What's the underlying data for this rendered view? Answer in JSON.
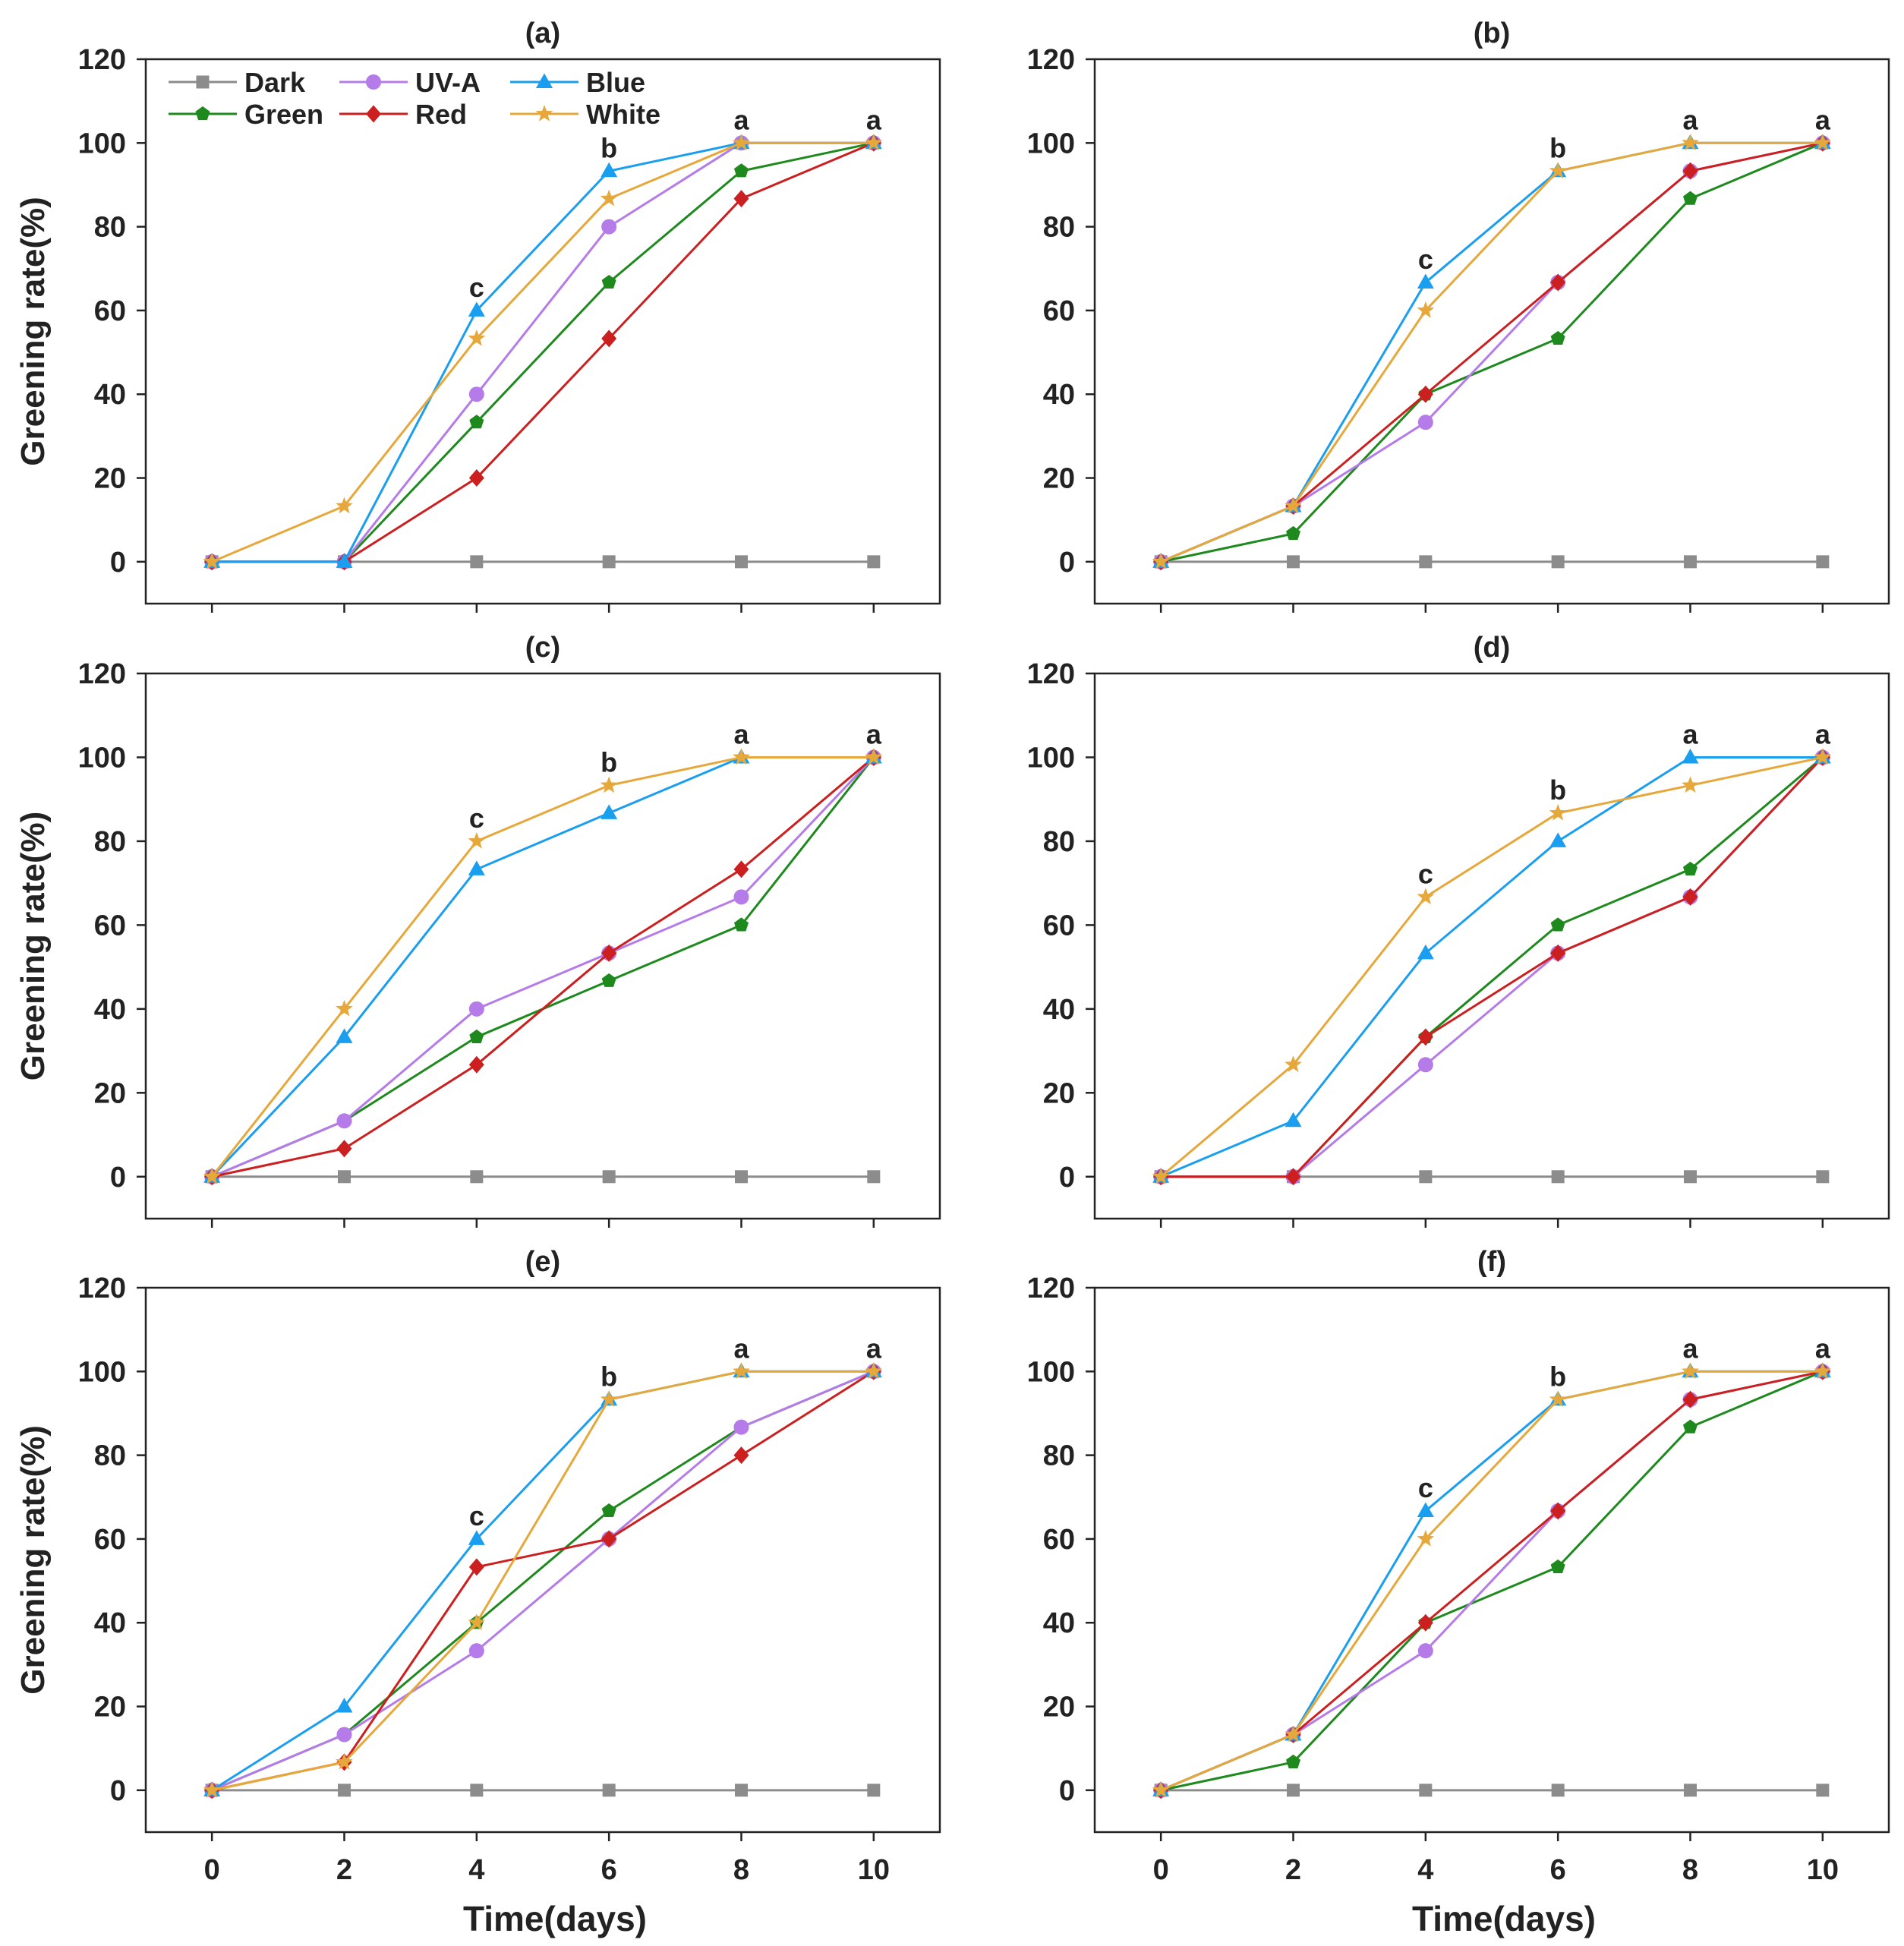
{
  "colors": {
    "Dark": "#8c8c8c",
    "Green": "#1e8a1e",
    "UV-A": "#b57be8",
    "Red": "#cc1f1f",
    "Blue": "#1a9ef0",
    "White": "#e6a83a",
    "axis": "#222222",
    "letters": "#222222"
  },
  "markers": {
    "Dark": "square",
    "Green": "pentagon",
    "UV-A": "circle",
    "Red": "diamond",
    "Blue": "triangle",
    "White": "star"
  },
  "legend": {
    "location": "top-left of panel (a)",
    "entries": [
      "Dark",
      "UV-A",
      "Blue",
      "Green",
      "Red",
      "White"
    ]
  },
  "chart_data": [
    {
      "type": "line",
      "title": "(a)",
      "xlabel": "",
      "ylabel": "Greening rate(%)",
      "x": [
        0,
        2,
        4,
        6,
        8,
        10
      ],
      "xticks": [
        "",
        "",
        "",
        "",
        "",
        ""
      ],
      "yticks": [
        "0",
        "20",
        "40",
        "60",
        "80",
        "100",
        "120"
      ],
      "ylim": [
        -10,
        120
      ],
      "grid": false,
      "legend": true,
      "series": [
        {
          "name": "Dark",
          "values": [
            0,
            0,
            0,
            0,
            0,
            0
          ]
        },
        {
          "name": "Green",
          "values": [
            0,
            0,
            33.3,
            66.7,
            93.3,
            100
          ]
        },
        {
          "name": "UV-A",
          "values": [
            0,
            0,
            40,
            80,
            100,
            100
          ]
        },
        {
          "name": "Red",
          "values": [
            0,
            0,
            20,
            53.3,
            86.7,
            100
          ]
        },
        {
          "name": "Blue",
          "values": [
            0,
            0,
            60,
            93.3,
            100,
            100
          ]
        },
        {
          "name": "White",
          "values": [
            0,
            13.3,
            53.3,
            86.7,
            100,
            100
          ]
        }
      ],
      "annotations": [
        {
          "x": 4,
          "y": 60,
          "text": "c"
        },
        {
          "x": 6,
          "y": 93.3,
          "text": "b"
        },
        {
          "x": 8,
          "y": 100,
          "text": "a"
        },
        {
          "x": 10,
          "y": 100,
          "text": "a"
        }
      ]
    },
    {
      "type": "line",
      "title": "(b)",
      "xlabel": "",
      "ylabel": "",
      "x": [
        0,
        2,
        4,
        6,
        8,
        10
      ],
      "xticks": [
        "",
        "",
        "",
        "",
        "",
        ""
      ],
      "yticks": [
        "0",
        "20",
        "40",
        "60",
        "80",
        "100",
        "120"
      ],
      "ylim": [
        -10,
        120
      ],
      "grid": false,
      "legend": false,
      "series": [
        {
          "name": "Dark",
          "values": [
            0,
            0,
            0,
            0,
            0,
            0
          ]
        },
        {
          "name": "Green",
          "values": [
            0,
            6.7,
            40,
            53.3,
            86.7,
            100
          ]
        },
        {
          "name": "UV-A",
          "values": [
            0,
            13.3,
            33.3,
            66.7,
            93.3,
            100
          ]
        },
        {
          "name": "Red",
          "values": [
            0,
            13.3,
            40,
            66.7,
            93.3,
            100
          ]
        },
        {
          "name": "Blue",
          "values": [
            0,
            13.3,
            66.7,
            93.3,
            100,
            100
          ]
        },
        {
          "name": "White",
          "values": [
            0,
            13.3,
            60,
            93.3,
            100,
            100
          ]
        }
      ],
      "annotations": [
        {
          "x": 4,
          "y": 66.7,
          "text": "c"
        },
        {
          "x": 6,
          "y": 93.3,
          "text": "b"
        },
        {
          "x": 8,
          "y": 100,
          "text": "a"
        },
        {
          "x": 10,
          "y": 100,
          "text": "a"
        }
      ]
    },
    {
      "type": "line",
      "title": "(c)",
      "xlabel": "",
      "ylabel": "Greening rate(%)",
      "x": [
        0,
        2,
        4,
        6,
        8,
        10
      ],
      "xticks": [
        "",
        "",
        "",
        "",
        "",
        ""
      ],
      "yticks": [
        "0",
        "20",
        "40",
        "60",
        "80",
        "100",
        "120"
      ],
      "ylim": [
        -10,
        120
      ],
      "grid": false,
      "legend": false,
      "series": [
        {
          "name": "Dark",
          "values": [
            0,
            0,
            0,
            0,
            0,
            0
          ]
        },
        {
          "name": "Green",
          "values": [
            0,
            13.3,
            33.3,
            46.7,
            60,
            100
          ]
        },
        {
          "name": "UV-A",
          "values": [
            0,
            13.3,
            40,
            53.3,
            66.7,
            100
          ]
        },
        {
          "name": "Red",
          "values": [
            0,
            6.7,
            26.7,
            53.3,
            73.3,
            100
          ]
        },
        {
          "name": "Blue",
          "values": [
            0,
            33.3,
            73.3,
            86.7,
            100,
            100
          ]
        },
        {
          "name": "White",
          "values": [
            0,
            40,
            80,
            93.3,
            100,
            100
          ]
        }
      ],
      "annotations": [
        {
          "x": 4,
          "y": 80,
          "text": "c"
        },
        {
          "x": 6,
          "y": 93.3,
          "text": "b"
        },
        {
          "x": 8,
          "y": 100,
          "text": "a"
        },
        {
          "x": 10,
          "y": 100,
          "text": "a"
        }
      ]
    },
    {
      "type": "line",
      "title": "(d)",
      "xlabel": "",
      "ylabel": "",
      "x": [
        0,
        2,
        4,
        6,
        8,
        10
      ],
      "xticks": [
        "",
        "",
        "",
        "",
        "",
        ""
      ],
      "yticks": [
        "0",
        "20",
        "40",
        "60",
        "80",
        "100",
        "120"
      ],
      "ylim": [
        -10,
        120
      ],
      "grid": false,
      "legend": false,
      "series": [
        {
          "name": "Dark",
          "values": [
            0,
            0,
            0,
            0,
            0,
            0
          ]
        },
        {
          "name": "Green",
          "values": [
            0,
            0,
            33.3,
            60,
            73.3,
            100
          ]
        },
        {
          "name": "UV-A",
          "values": [
            0,
            0,
            26.7,
            53.3,
            66.7,
            100
          ]
        },
        {
          "name": "Red",
          "values": [
            0,
            0,
            33.3,
            53.3,
            66.7,
            100
          ]
        },
        {
          "name": "Blue",
          "values": [
            0,
            13.3,
            53.3,
            80,
            100,
            100
          ]
        },
        {
          "name": "White",
          "values": [
            0,
            26.7,
            66.7,
            86.7,
            93.3,
            100
          ]
        }
      ],
      "annotations": [
        {
          "x": 4,
          "y": 66.7,
          "text": "c"
        },
        {
          "x": 6,
          "y": 86.7,
          "text": "b"
        },
        {
          "x": 8,
          "y": 100,
          "text": "a"
        },
        {
          "x": 10,
          "y": 100,
          "text": "a"
        }
      ]
    },
    {
      "type": "line",
      "title": "(e)",
      "xlabel": "Time(days)",
      "ylabel": "Greening rate(%)",
      "x": [
        0,
        2,
        4,
        6,
        8,
        10
      ],
      "xticks": [
        "0",
        "2",
        "4",
        "6",
        "8",
        "10"
      ],
      "yticks": [
        "0",
        "20",
        "40",
        "60",
        "80",
        "100",
        "120"
      ],
      "ylim": [
        -10,
        120
      ],
      "grid": false,
      "legend": false,
      "series": [
        {
          "name": "Dark",
          "values": [
            0,
            0,
            0,
            0,
            0,
            0
          ]
        },
        {
          "name": "Green",
          "values": [
            0,
            13.3,
            40,
            66.7,
            86.7,
            100
          ]
        },
        {
          "name": "UV-A",
          "values": [
            0,
            13.3,
            33.3,
            60,
            86.7,
            100
          ]
        },
        {
          "name": "Red",
          "values": [
            0,
            6.7,
            53.3,
            60,
            80,
            100
          ]
        },
        {
          "name": "Blue",
          "values": [
            0,
            20,
            60,
            93.3,
            100,
            100
          ]
        },
        {
          "name": "White",
          "values": [
            0,
            6.7,
            40,
            93.3,
            100,
            100
          ]
        }
      ],
      "annotations": [
        {
          "x": 4,
          "y": 60,
          "text": "c"
        },
        {
          "x": 6,
          "y": 93.3,
          "text": "b"
        },
        {
          "x": 8,
          "y": 100,
          "text": "a"
        },
        {
          "x": 10,
          "y": 100,
          "text": "a"
        }
      ]
    },
    {
      "type": "line",
      "title": "(f)",
      "xlabel": "Time(days)",
      "ylabel": "",
      "x": [
        0,
        2,
        4,
        6,
        8,
        10
      ],
      "xticks": [
        "0",
        "2",
        "4",
        "6",
        "8",
        "10"
      ],
      "yticks": [
        "0",
        "20",
        "40",
        "60",
        "80",
        "100",
        "120"
      ],
      "ylim": [
        -10,
        120
      ],
      "grid": false,
      "legend": false,
      "series": [
        {
          "name": "Dark",
          "values": [
            0,
            0,
            0,
            0,
            0,
            0
          ]
        },
        {
          "name": "Green",
          "values": [
            0,
            6.7,
            40,
            53.3,
            86.7,
            100
          ]
        },
        {
          "name": "UV-A",
          "values": [
            0,
            13.3,
            33.3,
            66.7,
            93.3,
            100
          ]
        },
        {
          "name": "Red",
          "values": [
            0,
            13.3,
            40,
            66.7,
            93.3,
            100
          ]
        },
        {
          "name": "Blue",
          "values": [
            0,
            13.3,
            66.7,
            93.3,
            100,
            100
          ]
        },
        {
          "name": "White",
          "values": [
            0,
            13.3,
            60,
            93.3,
            100,
            100
          ]
        }
      ],
      "annotations": [
        {
          "x": 4,
          "y": 66.7,
          "text": "c"
        },
        {
          "x": 6,
          "y": 93.3,
          "text": "b"
        },
        {
          "x": 8,
          "y": 100,
          "text": "a"
        },
        {
          "x": 10,
          "y": 100,
          "text": "a"
        }
      ]
    }
  ]
}
